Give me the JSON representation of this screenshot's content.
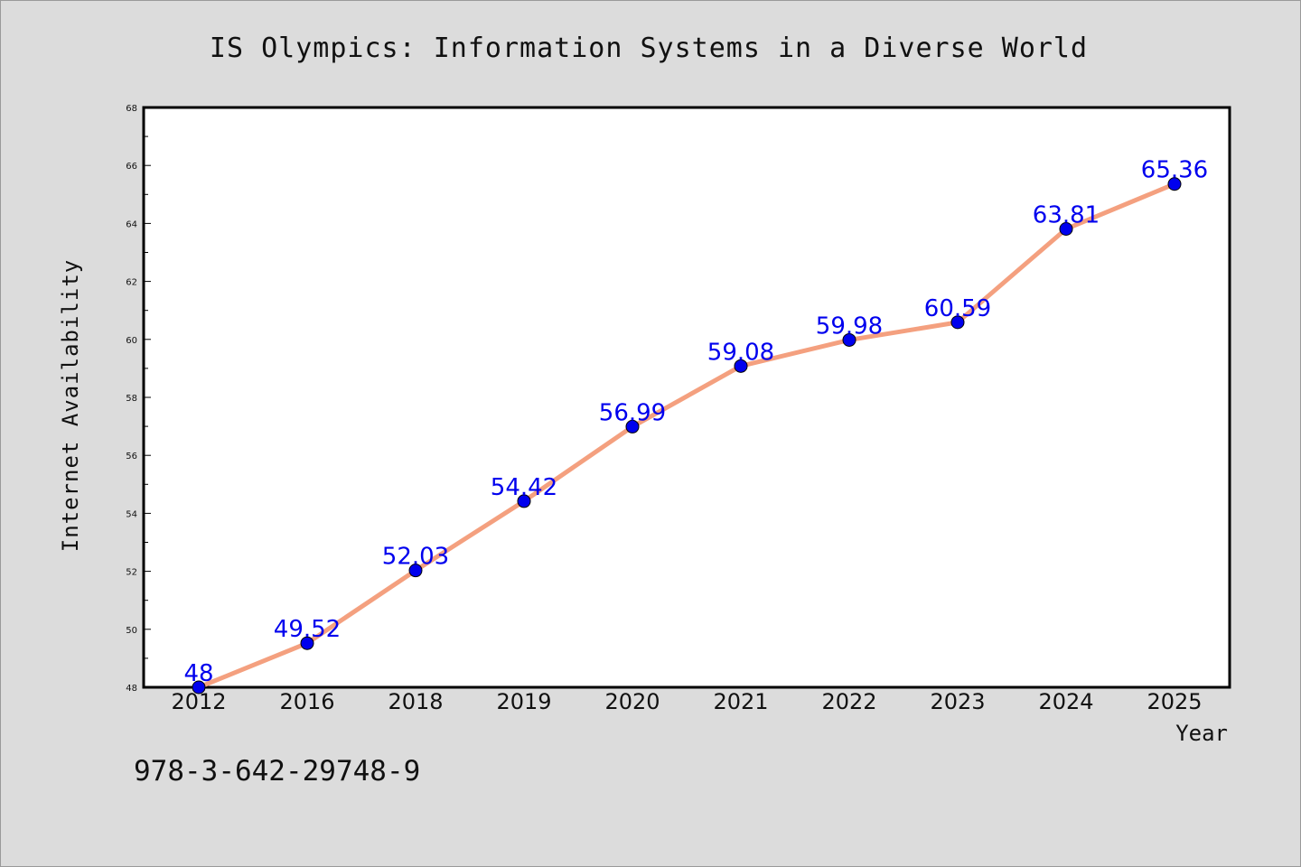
{
  "chart_data": {
    "type": "line",
    "title": "IS Olympics: Information Systems in a Diverse World",
    "xlabel": "Year",
    "ylabel": "Internet Availability",
    "categories": [
      "2012",
      "2016",
      "2018",
      "2019",
      "2020",
      "2021",
      "2022",
      "2023",
      "2024",
      "2025"
    ],
    "series": [
      {
        "values": [
          48,
          49.52,
          52.03,
          54.42,
          56.99,
          59.08,
          59.98,
          60.59,
          63.81,
          65.36
        ]
      }
    ],
    "data_labels": [
      "48",
      "49.52",
      "52.03",
      "54.42",
      "56.99",
      "59.08",
      "59.98",
      "60.59",
      "63.81",
      "65.36"
    ],
    "ylim": [
      48,
      68
    ],
    "yticks": [
      48,
      50,
      52,
      54,
      56,
      58,
      60,
      62,
      64,
      66,
      68
    ],
    "grid": false,
    "line_color": "#f4a07f",
    "marker_color": "#0000ee",
    "label_color": "#0000ee",
    "background_color": "#dcdcdc",
    "plot_background_color": "#ffffff"
  },
  "footer": {
    "isbn": "978-3-642-29748-9"
  }
}
